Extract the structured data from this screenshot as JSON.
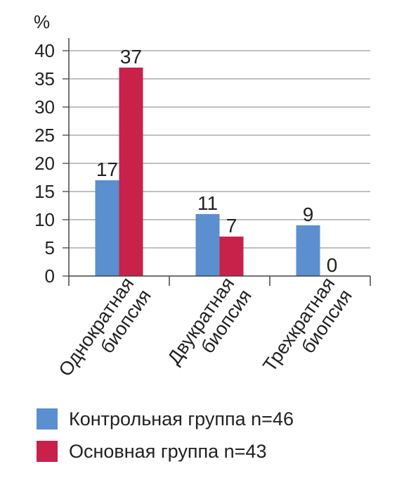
{
  "chart_data": {
    "type": "bar",
    "categories": [
      [
        "Однократная",
        "биопсия"
      ],
      [
        "Двукратная",
        "биопсия"
      ],
      [
        "Трехкратная",
        "биопсия"
      ]
    ],
    "series": [
      {
        "name": "Контрольная группа n=46",
        "values": [
          17,
          11,
          9
        ],
        "color": "#5b8fd0"
      },
      {
        "name": "Основная группа n=43",
        "values": [
          37,
          7,
          0
        ],
        "color": "#c8214a"
      }
    ],
    "unit": "%",
    "ylim": [
      0,
      40
    ],
    "yticks": [
      "0",
      "5",
      "10",
      "15",
      "20",
      "25",
      "30",
      "35",
      "40"
    ],
    "grid": true,
    "legend_position": "bottom"
  }
}
